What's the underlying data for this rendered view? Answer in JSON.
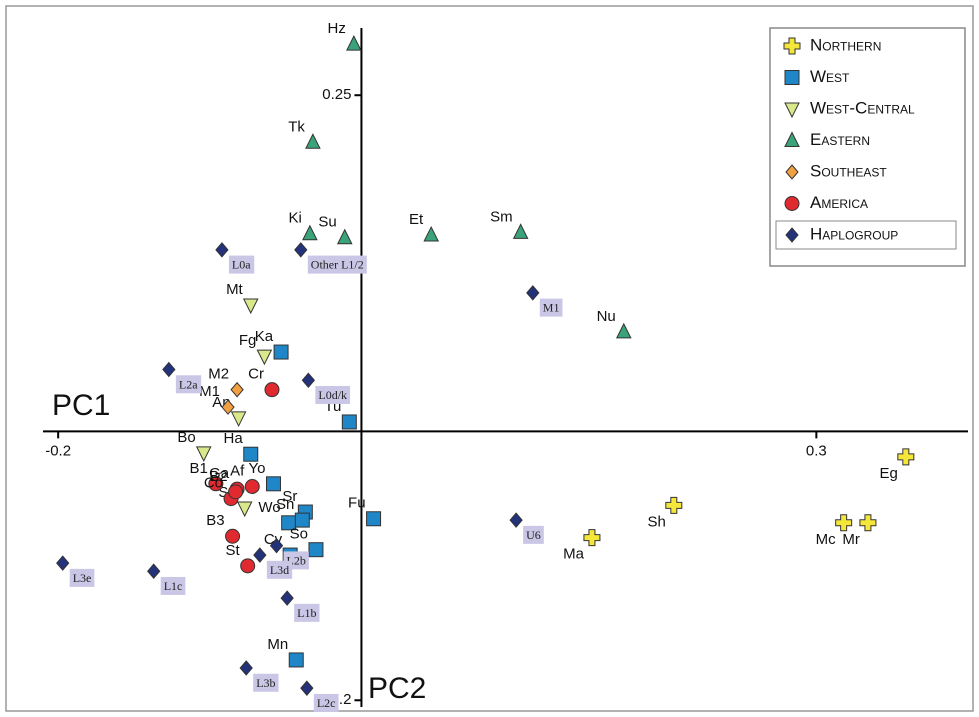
{
  "chart_data": {
    "type": "scatter",
    "x_label": "PC1",
    "y_label": "PC2",
    "xlim": [
      -0.21,
      0.4
    ],
    "ylim": [
      -0.205,
      0.3
    ],
    "xticks": [
      -0.2,
      0.3
    ],
    "yticks": [
      0.25,
      -0.2
    ],
    "legend": "top-right",
    "series": [
      {
        "name": "Northern",
        "color": "#f5e63a",
        "marker": "cross",
        "labels": [
          "Eg",
          "Sh",
          "Ma",
          "Mc",
          "Mr"
        ],
        "x": [
          0.359,
          0.206,
          0.152,
          0.318,
          0.334
        ],
        "values": [
          -0.019,
          -0.055,
          -0.079,
          -0.068,
          -0.068
        ]
      },
      {
        "name": "West",
        "color": "#1f86c8",
        "marker": "square",
        "labels": [
          "Ka",
          "Tu",
          "Ha",
          "Yo",
          "Wo",
          "Sr",
          "Sn",
          "Fu",
          "Cv",
          "So",
          "Mn"
        ],
        "x": [
          -0.053,
          -0.008,
          -0.073,
          -0.058,
          -0.048,
          -0.037,
          -0.039,
          0.008,
          -0.047,
          -0.03,
          -0.043
        ],
        "values": [
          0.059,
          0.007,
          -0.017,
          -0.039,
          -0.068,
          -0.06,
          -0.066,
          -0.065,
          -0.092,
          -0.088,
          -0.17
        ]
      },
      {
        "name": "West-Central",
        "color": "#d9e88a",
        "marker": "tri-down",
        "labels": [
          "Mt",
          "Fg",
          "An",
          "Bo",
          "Sa"
        ],
        "x": [
          -0.073,
          -0.064,
          -0.081,
          -0.104,
          -0.077
        ],
        "values": [
          0.094,
          0.056,
          0.01,
          -0.016,
          -0.057
        ]
      },
      {
        "name": "Eastern",
        "color": "#3aa37a",
        "marker": "tri-up",
        "labels": [
          "Hz",
          "Tk",
          "Ki",
          "Su",
          "Et",
          "Sm",
          "Nu"
        ],
        "x": [
          -0.005,
          -0.032,
          -0.034,
          -0.011,
          0.046,
          0.105,
          0.173
        ],
        "values": [
          0.288,
          0.215,
          0.147,
          0.144,
          0.146,
          0.148,
          0.074
        ]
      },
      {
        "name": "Southeast",
        "color": "#f0a040",
        "marker": "diamond",
        "labels": [
          "M2",
          "M1"
        ],
        "x": [
          -0.082,
          -0.088
        ],
        "values": [
          0.031,
          0.018
        ]
      },
      {
        "name": "America",
        "color": "#e02a30",
        "marker": "circle",
        "labels": [
          "Cr",
          "B1",
          "Ga",
          "Af",
          "Co",
          "B2",
          "B3",
          "St"
        ],
        "x": [
          -0.059,
          -0.096,
          -0.082,
          -0.072,
          -0.086,
          -0.083,
          -0.085,
          -0.075
        ],
        "values": [
          0.031,
          -0.039,
          -0.043,
          -0.041,
          -0.05,
          -0.045,
          -0.078,
          -0.1
        ]
      },
      {
        "name": "Haplogroup",
        "color": "#23327a",
        "marker": "diamond",
        "labels": [
          "L0a",
          "Other L1/2",
          "M1",
          "L2a",
          "L0d/k",
          "L2b",
          "L3d",
          "L3e",
          "L1c",
          "L1b",
          "U6",
          "L3b",
          "L2c"
        ],
        "x": [
          -0.092,
          -0.04,
          0.113,
          -0.127,
          -0.035,
          -0.056,
          -0.067,
          -0.197,
          -0.137,
          -0.049,
          0.102,
          -0.076,
          -0.036
        ],
        "values": [
          0.135,
          0.135,
          0.103,
          0.046,
          0.038,
          -0.085,
          -0.092,
          -0.098,
          -0.104,
          -0.124,
          -0.066,
          -0.176,
          -0.191
        ]
      }
    ]
  }
}
